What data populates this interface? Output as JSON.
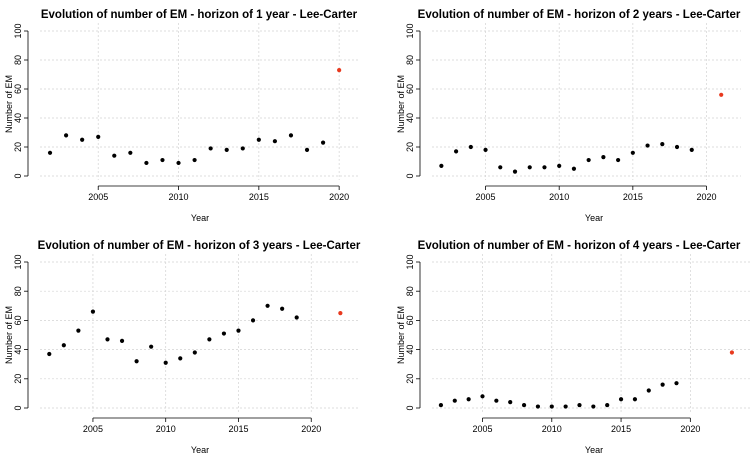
{
  "chart_data": [
    {
      "type": "scatter",
      "title": "Evolution of number of EM - horizon of 1 year - Lee-Carter",
      "xlabel": "Year",
      "ylabel": "Number of EM",
      "xlim": [
        2001.5,
        2020.8
      ],
      "ylim": [
        0,
        100
      ],
      "xticks": [
        2005,
        2010,
        2015,
        2020
      ],
      "yticks": [
        0,
        20,
        40,
        60,
        80,
        100
      ],
      "grid": true,
      "series": [
        {
          "color": "#000000",
          "x": [
            2002,
            2003,
            2004,
            2005,
            2006,
            2007,
            2008,
            2009,
            2010,
            2011,
            2012,
            2013,
            2014,
            2015,
            2016,
            2017,
            2018,
            2019
          ],
          "y": [
            16,
            28,
            25,
            27,
            14,
            16,
            9,
            11,
            9,
            11,
            19,
            18,
            19,
            25,
            24,
            28,
            18,
            23
          ]
        },
        {
          "color": "#e8391e",
          "x": [
            2020
          ],
          "y": [
            73
          ]
        }
      ]
    },
    {
      "type": "scatter",
      "title": "Evolution of number of EM - horizon of 2 years - Lee-Carter",
      "xlabel": "Year",
      "ylabel": "Number of EM",
      "xlim": [
        2001.5,
        2021.8
      ],
      "ylim": [
        0,
        100
      ],
      "xticks": [
        2005,
        2010,
        2015,
        2020
      ],
      "yticks": [
        0,
        20,
        40,
        60,
        80,
        100
      ],
      "grid": true,
      "series": [
        {
          "color": "#000000",
          "x": [
            2002,
            2003,
            2004,
            2005,
            2006,
            2007,
            2008,
            2009,
            2010,
            2011,
            2012,
            2013,
            2014,
            2015,
            2016,
            2017,
            2018,
            2019
          ],
          "y": [
            7,
            17,
            20,
            18,
            6,
            3,
            6,
            6,
            7,
            5,
            11,
            13,
            11,
            16,
            21,
            22,
            20,
            18
          ]
        },
        {
          "color": "#e8391e",
          "x": [
            2021
          ],
          "y": [
            56
          ]
        }
      ]
    },
    {
      "type": "scatter",
      "title": "Evolution of number of EM - horizon of 3 years - Lee-Carter",
      "xlabel": "Year",
      "ylabel": "Number of EM",
      "xlim": [
        2001.5,
        2022.8
      ],
      "ylim": [
        0,
        100
      ],
      "xticks": [
        2005,
        2010,
        2015,
        2020
      ],
      "yticks": [
        0,
        20,
        40,
        60,
        80,
        100
      ],
      "grid": true,
      "series": [
        {
          "color": "#000000",
          "x": [
            2002,
            2003,
            2004,
            2005,
            2006,
            2007,
            2008,
            2009,
            2010,
            2011,
            2012,
            2013,
            2014,
            2015,
            2016,
            2017,
            2018,
            2019
          ],
          "y": [
            37,
            43,
            53,
            66,
            47,
            46,
            32,
            42,
            31,
            34,
            38,
            47,
            51,
            53,
            60,
            70,
            68,
            62
          ]
        },
        {
          "color": "#e8391e",
          "x": [
            2022
          ],
          "y": [
            65
          ]
        }
      ]
    },
    {
      "type": "scatter",
      "title": "Evolution of number of EM - horizon of 4 years - Lee-Carter",
      "xlabel": "Year",
      "ylabel": "Number of EM",
      "xlim": [
        2001.5,
        2023.8
      ],
      "ylim": [
        0,
        100
      ],
      "xticks": [
        2005,
        2010,
        2015,
        2020
      ],
      "yticks": [
        0,
        20,
        40,
        60,
        80,
        100
      ],
      "grid": true,
      "series": [
        {
          "color": "#000000",
          "x": [
            2002,
            2003,
            2004,
            2005,
            2006,
            2007,
            2008,
            2009,
            2010,
            2011,
            2012,
            2013,
            2014,
            2015,
            2016,
            2017,
            2018,
            2019
          ],
          "y": [
            2,
            5,
            6,
            8,
            5,
            4,
            2,
            1,
            1,
            1,
            2,
            1,
            2,
            6,
            6,
            12,
            16,
            17
          ]
        },
        {
          "color": "#e8391e",
          "x": [
            2023
          ],
          "y": [
            38
          ]
        }
      ]
    }
  ]
}
